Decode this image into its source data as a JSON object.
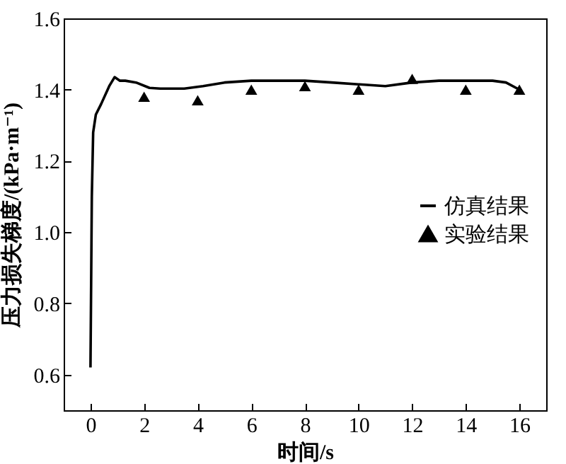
{
  "chart_data": {
    "type": "line",
    "xlabel": "时间/s",
    "ylabel": "压力损失梯度/(kPa·m⁻¹)",
    "xlim": [
      -1,
      17
    ],
    "xticks": [
      0,
      2,
      4,
      6,
      8,
      10,
      12,
      14,
      16
    ],
    "ylim": [
      0.5,
      1.6
    ],
    "yticks": [
      0.6,
      0.8,
      {
        "value": 1,
        "label": "1.0"
      },
      1.2,
      1.4,
      1.6
    ],
    "grid": false,
    "legend": "right",
    "series": [
      {
        "name": "仿真结果",
        "color": "#000000",
        "marker": "none",
        "line_style": "solid",
        "x": [
          0,
          0.05,
          0.1,
          0.2,
          0.4,
          0.7,
          0.9,
          1.1,
          1.3,
          1.7,
          2.2,
          2.6,
          3.5,
          4.2,
          5,
          6,
          7,
          8,
          9,
          10,
          11,
          12,
          13,
          14,
          15,
          15.5,
          16
        ],
        "values": [
          0.62,
          1.1,
          1.28,
          1.33,
          1.36,
          1.41,
          1.435,
          1.425,
          1.425,
          1.42,
          1.405,
          1.403,
          1.403,
          1.41,
          1.42,
          1.425,
          1.425,
          1.425,
          1.42,
          1.415,
          1.41,
          1.42,
          1.425,
          1.425,
          1.425,
          1.42,
          1.4
        ]
      },
      {
        "name": "实验结果",
        "type": "scatter",
        "color": "#000000",
        "marker": "triangle",
        "x": [
          2,
          4,
          6,
          8,
          10,
          12,
          14,
          16
        ],
        "values": [
          1.38,
          1.37,
          1.4,
          1.41,
          1.4,
          1.43,
          1.4,
          1.4
        ]
      }
    ]
  }
}
